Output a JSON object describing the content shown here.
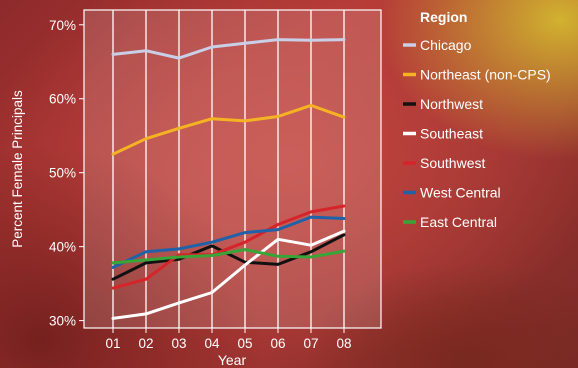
{
  "chart_data": {
    "type": "line",
    "title": "",
    "xlabel": "Year",
    "ylabel": "Percent Female Principals",
    "categories": [
      "01",
      "02",
      "03",
      "04",
      "05",
      "06",
      "07",
      "08"
    ],
    "ylim": [
      29,
      72
    ],
    "yticks": [
      30,
      40,
      50,
      60,
      70
    ],
    "ytick_labels": [
      "30%",
      "40%",
      "50%",
      "60%",
      "70%"
    ],
    "grid": "vertical",
    "legend_title": "Region",
    "legend_position": "right",
    "series": [
      {
        "name": "Chicago",
        "color": "#c8cfe6",
        "values": [
          66.0,
          66.5,
          65.5,
          67.0,
          67.5,
          68.0,
          67.9,
          68.0
        ]
      },
      {
        "name": "Northeast (non-CPS)",
        "color": "#f5b323",
        "values": [
          52.5,
          54.6,
          56.0,
          57.3,
          57.0,
          57.6,
          59.1,
          57.5
        ]
      },
      {
        "name": "Northwest",
        "color": "#111111",
        "values": [
          35.6,
          37.8,
          38.3,
          40.1,
          37.9,
          37.6,
          39.3,
          41.6
        ]
      },
      {
        "name": "Southeast",
        "color": "#ffffff",
        "values": [
          30.3,
          30.9,
          32.4,
          33.8,
          37.5,
          41.0,
          40.2,
          42.1
        ]
      },
      {
        "name": "Southwest",
        "color": "#d6242a",
        "values": [
          34.4,
          35.6,
          38.9,
          38.9,
          40.6,
          43.0,
          44.7,
          45.5
        ]
      },
      {
        "name": "West Central",
        "color": "#1f62a8",
        "values": [
          37.2,
          39.3,
          39.7,
          40.6,
          41.9,
          42.3,
          44.0,
          43.8
        ]
      },
      {
        "name": "East Central",
        "color": "#39a437",
        "values": [
          37.8,
          38.2,
          38.6,
          38.8,
          39.6,
          38.7,
          38.6,
          39.4
        ]
      }
    ]
  }
}
